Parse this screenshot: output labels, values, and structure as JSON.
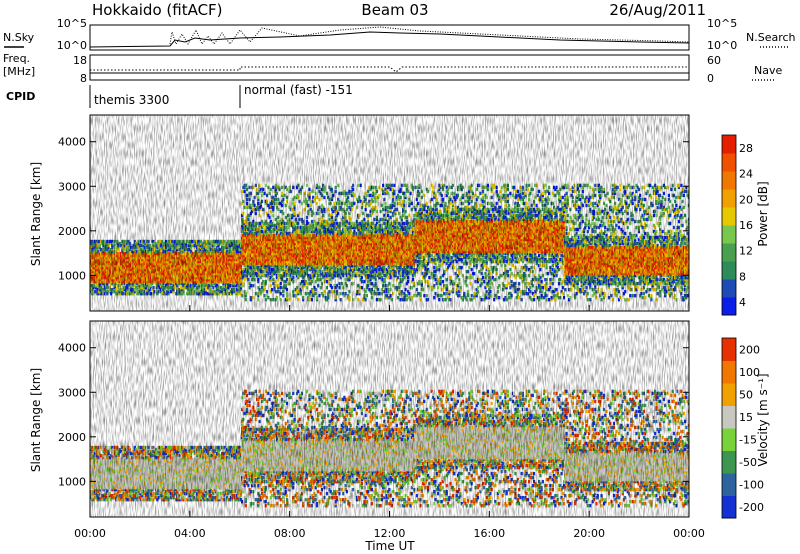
{
  "header": {
    "station": "Hokkaido (fitACF)",
    "beam": "Beam 03",
    "date": "26/Aug/2011"
  },
  "summary_panel": {
    "left_top_label": "N.Sky",
    "left_top_ticks": [
      "10^5",
      "10^0"
    ],
    "right_top_ticks": [
      "10^5",
      "10^0"
    ],
    "right_top_label": "N.Search",
    "freq_label_line1": "Freq.",
    "freq_label_line2": "[MHz]",
    "freq_ticks": [
      "18",
      "8"
    ],
    "nave_ticks": [
      "60",
      "0"
    ],
    "nave_label": "Nave",
    "cpid_label": "CPID",
    "cpid_modes": [
      {
        "name": "themis 3300",
        "start_hour": 0
      },
      {
        "name": "normal (fast) -151",
        "start_hour": 6
      }
    ]
  },
  "chart_data": [
    {
      "type": "heatmap",
      "name": "power",
      "ylabel": "Slant Range [km]",
      "xlabel": "",
      "y_ticks": [
        "4000",
        "3000",
        "2000",
        "1000"
      ],
      "ylim": [
        200,
        4600
      ],
      "xlim": [
        0,
        24
      ],
      "colorbar": {
        "label": "Power [dB]",
        "ticks": [
          "28",
          "24",
          "20",
          "16",
          "12",
          "8",
          "4"
        ],
        "range": [
          0,
          32
        ],
        "colors": [
          "#0a1ee6",
          "#1e4bb4",
          "#2d8c5a",
          "#4ba050",
          "#78c850",
          "#e6c800",
          "#f0a000",
          "#f07800",
          "#f05000",
          "#e61e00"
        ]
      },
      "echo_bands": [
        {
          "start_hour": 0,
          "end_hour": 6,
          "range_km": [
            800,
            1500
          ],
          "power_db": 28
        },
        {
          "start_hour": 6,
          "end_hour": 13,
          "range_km": [
            1200,
            1900
          ],
          "power_db": 22
        },
        {
          "start_hour": 13,
          "end_hour": 19,
          "range_km": [
            1500,
            2200
          ],
          "power_db": 20
        },
        {
          "start_hour": 19,
          "end_hour": 24,
          "range_km": [
            1000,
            1600
          ],
          "power_db": 24
        }
      ]
    },
    {
      "type": "heatmap",
      "name": "velocity",
      "ylabel": "Slant Range [km]",
      "xlabel": "Time UT",
      "x_ticks": [
        "00:00",
        "04:00",
        "08:00",
        "12:00",
        "16:00",
        "20:00",
        "00:00"
      ],
      "x_tick_hours": [
        0,
        4,
        8,
        12,
        16,
        20,
        24
      ],
      "y_ticks": [
        "4000",
        "3000",
        "2000",
        "1000"
      ],
      "ylim": [
        200,
        4600
      ],
      "xlim": [
        0,
        24
      ],
      "colorbar": {
        "label": "Velocity [m s⁻¹]",
        "ticks": [
          "200",
          "100",
          "50",
          "15",
          "-15",
          "-50",
          "-100",
          "-200"
        ],
        "range": [
          -250,
          250
        ],
        "colors": [
          "#1432d2",
          "#2d64a0",
          "#3c9650",
          "#78d23c",
          "#c8c8c0",
          "#f0a000",
          "#f07800",
          "#e63200"
        ]
      }
    }
  ]
}
